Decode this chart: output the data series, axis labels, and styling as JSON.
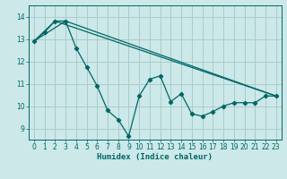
{
  "xlabel": "Humidex (Indice chaleur)",
  "xlim": [
    -0.5,
    23.5
  ],
  "ylim": [
    8.5,
    14.5
  ],
  "yticks": [
    9,
    10,
    11,
    12,
    13,
    14
  ],
  "xticks": [
    0,
    1,
    2,
    3,
    4,
    5,
    6,
    7,
    8,
    9,
    10,
    11,
    12,
    13,
    14,
    15,
    16,
    17,
    18,
    19,
    20,
    21,
    22,
    23
  ],
  "bg_color": "#cce8e8",
  "grid_color": "#aacccc",
  "line_color": "#006666",
  "zigzag_x": [
    0,
    1,
    2,
    3,
    4,
    5,
    6,
    7,
    8,
    9,
    10,
    11,
    12,
    13,
    14,
    15,
    16,
    17,
    18,
    19,
    20,
    21,
    22,
    23
  ],
  "zigzag_y": [
    12.9,
    13.3,
    13.8,
    13.8,
    12.6,
    11.75,
    10.9,
    9.8,
    9.4,
    8.65,
    10.45,
    11.2,
    11.35,
    10.2,
    10.55,
    9.65,
    9.55,
    9.75,
    10.0,
    10.15,
    10.15,
    10.15,
    10.45,
    10.45
  ],
  "trend1_x": [
    0,
    2,
    23
  ],
  "trend1_y": [
    12.9,
    13.8,
    10.45
  ],
  "trend2_x": [
    0,
    3,
    23
  ],
  "trend2_y": [
    12.9,
    13.8,
    10.45
  ]
}
